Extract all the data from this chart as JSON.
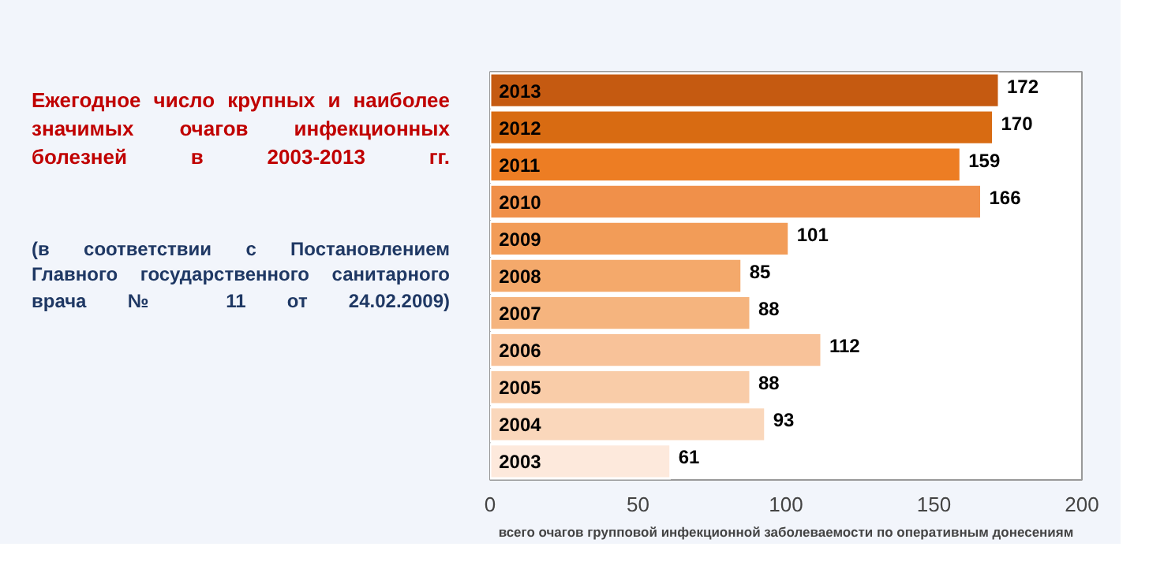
{
  "chart_data": {
    "type": "bar",
    "orientation": "horizontal",
    "title": "Ежегодное число крупных и наиболее значимых очагов инфекционных болезней в 2003-2013 гг.",
    "subtitle": "(в соответствии с Постановлением Главного государственного санитарного врача № 11 от 24.02.2009)",
    "xlabel": "всего очагов групповой инфекционной заболеваемости по оперативным донесениям",
    "categories": [
      "2013",
      "2012",
      "2011",
      "2010",
      "2009",
      "2008",
      "2007",
      "2006",
      "2005",
      "2004",
      "2003"
    ],
    "values": [
      172,
      170,
      159,
      166,
      101,
      85,
      88,
      112,
      88,
      93,
      61
    ],
    "colors": [
      "#c55a11",
      "#d86b12",
      "#ed7d23",
      "#f0904a",
      "#f29c58",
      "#f4a96b",
      "#f5b47e",
      "#f8c299",
      "#f9cca8",
      "#fad7bb",
      "#fde9dc"
    ],
    "xlim": [
      0,
      200
    ],
    "xticks": [
      0,
      50,
      100,
      150,
      200
    ],
    "data_labels": true,
    "grid": false
  }
}
